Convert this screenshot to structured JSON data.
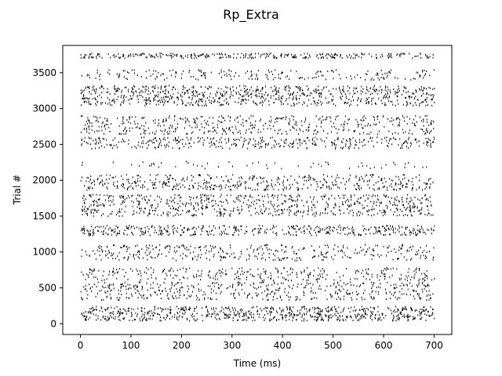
{
  "chart_data": {
    "type": "scatter",
    "subtype": "raster",
    "title": "Rp_Extra",
    "xlabel": "Time (ms)",
    "ylabel": "Trial #",
    "xlim": [
      -35,
      735
    ],
    "ylim": [
      -150,
      3880
    ],
    "xticks": [
      0,
      100,
      200,
      300,
      400,
      500,
      600,
      700
    ],
    "xtick_labels": [
      "0",
      "100",
      "200",
      "300",
      "400",
      "500",
      "600",
      "700"
    ],
    "yticks": [
      0,
      500,
      1000,
      1500,
      2000,
      2500,
      3000,
      3500
    ],
    "ytick_labels": [
      "0",
      "500",
      "1000",
      "1500",
      "2000",
      "2500",
      "3000",
      "3500"
    ],
    "grid": false,
    "legend": "none",
    "marker_color": "#000000",
    "time_range": [
      0,
      700
    ],
    "trial_bands": [
      {
        "trial_start": 40,
        "trial_end": 240,
        "spikes_per_ms": 1.05
      },
      {
        "trial_start": 330,
        "trial_end": 580,
        "spikes_per_ms": 0.7
      },
      {
        "trial_start": 600,
        "trial_end": 780,
        "spikes_per_ms": 0.45
      },
      {
        "trial_start": 880,
        "trial_end": 1100,
        "spikes_per_ms": 0.55
      },
      {
        "trial_start": 1230,
        "trial_end": 1370,
        "spikes_per_ms": 0.65
      },
      {
        "trial_start": 1500,
        "trial_end": 1800,
        "spikes_per_ms": 1.05
      },
      {
        "trial_start": 1860,
        "trial_end": 2080,
        "spikes_per_ms": 0.7
      },
      {
        "trial_start": 2160,
        "trial_end": 2260,
        "spikes_per_ms": 0.08
      },
      {
        "trial_start": 2440,
        "trial_end": 2600,
        "spikes_per_ms": 0.55
      },
      {
        "trial_start": 2640,
        "trial_end": 2900,
        "spikes_per_ms": 0.7
      },
      {
        "trial_start": 3040,
        "trial_end": 3320,
        "spikes_per_ms": 1.2
      },
      {
        "trial_start": 3400,
        "trial_end": 3540,
        "spikes_per_ms": 0.3
      },
      {
        "trial_start": 3700,
        "trial_end": 3770,
        "spikes_per_ms": 0.45
      }
    ]
  }
}
